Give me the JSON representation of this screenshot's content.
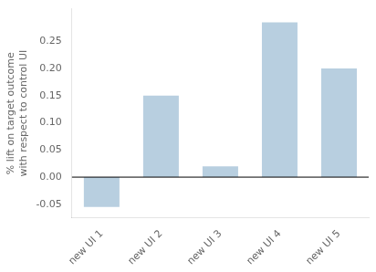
{
  "chart_data": {
    "type": "bar",
    "categories": [
      "new UI 1",
      "new UI 2",
      "new UI 3",
      "new UI 4",
      "new UI 5"
    ],
    "values": [
      -0.055,
      0.15,
      0.02,
      0.285,
      0.2
    ],
    "color": "#b8cfe0",
    "ylabel": "% lift on target outcome\nwith respect to control UI",
    "ylim": [
      -0.075,
      0.31
    ],
    "yticks": [
      -0.05,
      {
        "value": 0.0,
        "label": "0.00"
      },
      0.05,
      {
        "value": 0.1,
        "label": "0.10"
      },
      0.15,
      {
        "value": 0.2,
        "label": "0.20"
      },
      0.25
    ],
    "grid": false,
    "reference_line": {
      "y": 0.0,
      "color": "black"
    }
  }
}
